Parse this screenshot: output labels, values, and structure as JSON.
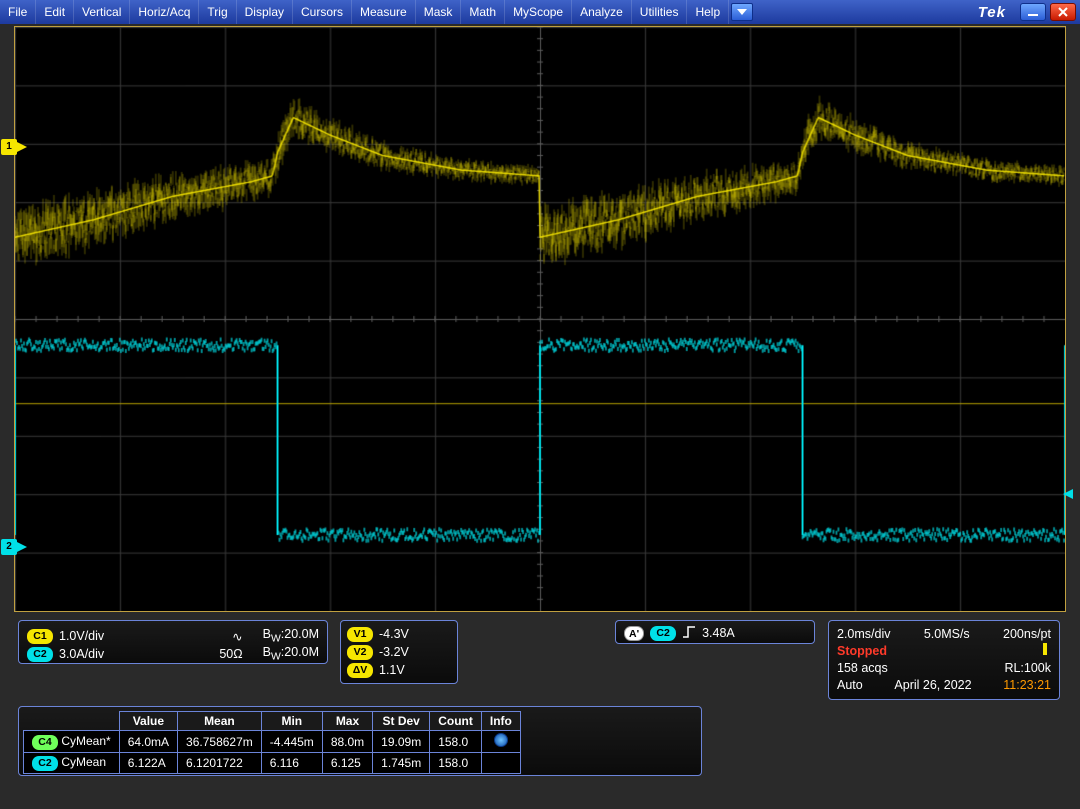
{
  "colors": {
    "menubar_top": "#3f63c8",
    "menubar_bottom": "#1d3a9e",
    "panel_border": "#6b84d9",
    "scope_bg": "#000000",
    "scope_border": "#c0a040",
    "ch1": "#f6e600",
    "ch2": "#00e0e8",
    "grid": "#3a3a3a",
    "stopped": "#ff3a2a",
    "timestamp": "#ff9a00"
  },
  "menubar": {
    "items": [
      "File",
      "Edit",
      "Vertical",
      "Horiz/Acq",
      "Trig",
      "Display",
      "Cursors",
      "Measure",
      "Mask",
      "Math",
      "MyScope",
      "Analyze",
      "Utilities",
      "Help"
    ],
    "brand": "Tek"
  },
  "scope": {
    "width_divs": 10,
    "height_divs": 10,
    "ch1_ref_div": 2.05,
    "ch2_ref_div": 8.9,
    "ch1_waveform": {
      "type": "noisy-periodic",
      "period_divs": 5.0,
      "phase_offset_divs": 0.0,
      "baseline_div": 2.7,
      "segments": [
        {
          "t": 0.0,
          "y": 3.6,
          "noise": 0.7
        },
        {
          "t": 0.15,
          "y": 3.3,
          "noise": 0.65
        },
        {
          "t": 0.3,
          "y": 2.9,
          "noise": 0.55
        },
        {
          "t": 0.45,
          "y": 2.65,
          "noise": 0.45
        },
        {
          "t": 0.49,
          "y": 2.55,
          "noise": 0.4
        },
        {
          "t": 0.5,
          "y": 2.15,
          "noise": 0.55
        },
        {
          "t": 0.53,
          "y": 1.55,
          "noise": 0.45
        },
        {
          "t": 0.6,
          "y": 1.85,
          "noise": 0.4
        },
        {
          "t": 0.7,
          "y": 2.2,
          "noise": 0.32
        },
        {
          "t": 0.85,
          "y": 2.45,
          "noise": 0.25
        },
        {
          "t": 1.0,
          "y": 2.55,
          "noise": 0.22
        }
      ],
      "color": "#f6e600"
    },
    "ch2_waveform": {
      "type": "square",
      "period_divs": 5.0,
      "phase_offset_divs": 0.0,
      "high_div": 5.45,
      "low_div": 8.7,
      "duty": 0.5,
      "rise_noise": 0.1,
      "color": "#00e0e8"
    },
    "zero_line_div": 6.45,
    "zero_line_color": "#b7a200",
    "right_marker_div": 8.0
  },
  "vertical_panel": {
    "ch1": {
      "badge": "C1",
      "scale": "1.0V/div",
      "coupling": "",
      "bw_label": "B",
      "bw_sub": "W",
      "bw_val": ":20.0M",
      "icon": "ac"
    },
    "ch2": {
      "badge": "C2",
      "scale": "3.0A/div",
      "term": "50Ω",
      "bw_label": "B",
      "bw_sub": "W",
      "bw_val": ":20.0M"
    }
  },
  "cursor_panel": {
    "rows": [
      {
        "badge": "V1",
        "cls": "v",
        "value": "-4.3V"
      },
      {
        "badge": "V2",
        "cls": "v",
        "value": "-3.2V"
      },
      {
        "badge": "ΔV",
        "cls": "dv",
        "value": "1.1V"
      }
    ]
  },
  "trigger_panel": {
    "badge_a": "A'",
    "src_badge": "C2",
    "edge": "rising",
    "level": "3.48A"
  },
  "timebase_panel": {
    "line1_left": "2.0ms/div",
    "line1_mid": "5.0MS/s",
    "line1_right": "200ns/pt",
    "status": "Stopped",
    "acqs": "158 acqs",
    "rl": "RL:100k",
    "mode": "Auto",
    "date": "April 26, 2022",
    "time": "11:23:21"
  },
  "measurements": {
    "headers": [
      "",
      "Value",
      "Mean",
      "Min",
      "Max",
      "St Dev",
      "Count",
      "Info"
    ],
    "rows": [
      {
        "badge": "C4",
        "cls": "c4",
        "name": "CyMean*",
        "value": "64.0mA",
        "mean": "36.758627m",
        "min": "-4.445m",
        "max": "88.0m",
        "stdev": "19.09m",
        "count": "158.0",
        "info": true
      },
      {
        "badge": "C2",
        "cls": "c2",
        "name": "CyMean",
        "value": "6.122A",
        "mean": "6.1201722",
        "min": "6.116",
        "max": "6.125",
        "stdev": "1.745m",
        "count": "158.0",
        "info": false
      }
    ]
  }
}
